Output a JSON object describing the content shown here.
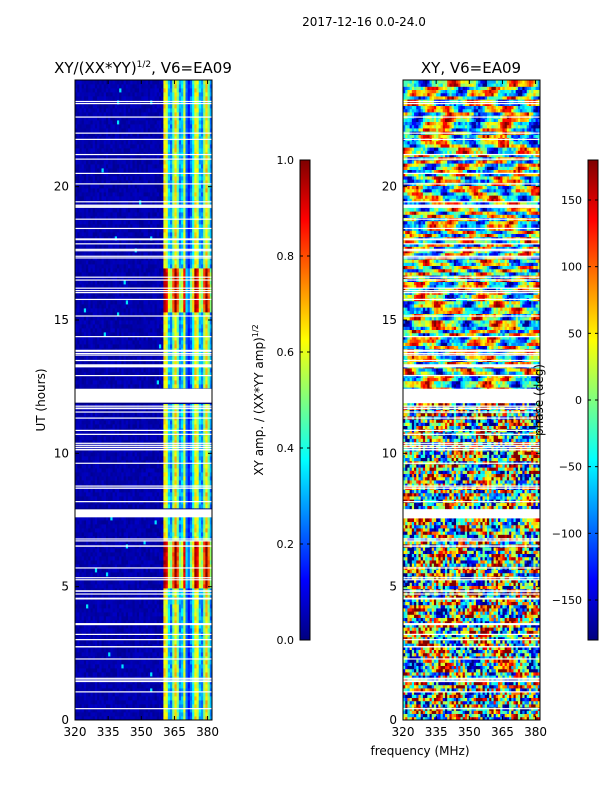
{
  "figure": {
    "suptitle": "2017-12-16 0.0-24.0",
    "shared_xlabel": "frequency (MHz)"
  },
  "colors": {
    "jet": [
      "#00007f",
      "#0000ff",
      "#007fff",
      "#00ffff",
      "#7fff7f",
      "#ffff00",
      "#ff7f00",
      "#ff0000",
      "#7f0000"
    ],
    "gap": "#ffffff",
    "axes": "#000000"
  },
  "chart_data": [
    {
      "type": "heatmap",
      "title_main": "XY/(XX*YY)",
      "title_sup": "1/2",
      "title_rest": ", V6=EA09",
      "xlabel": "",
      "ylabel": "UT (hours)",
      "xlim": [
        320,
        382
      ],
      "ylim": [
        0,
        24
      ],
      "xticks": [
        320,
        335,
        350,
        365,
        380
      ],
      "yticks": [
        0,
        5,
        10,
        15,
        20
      ],
      "signal_band_mhz": [
        360,
        381
      ],
      "high_amp_hours": [
        [
          5.0,
          6.8
        ],
        [
          15.3,
          17.0
        ]
      ],
      "data_gaps_hours": [
        [
          7.6,
          7.9
        ],
        [
          11.9,
          12.4
        ]
      ],
      "colorbar": {
        "label_main": "XY amp. / (XX*YY amp)",
        "label_sup": "1/2",
        "range": [
          0.0,
          1.0
        ],
        "ticks": [
          "0.0",
          "0.2",
          "0.4",
          "0.6",
          "0.8",
          "1.0"
        ],
        "tick_values": [
          0.0,
          0.2,
          0.4,
          0.6,
          0.8,
          1.0
        ]
      }
    },
    {
      "type": "heatmap",
      "title": "XY, V6=EA09",
      "xlabel": "",
      "ylabel": "",
      "xlim": [
        320,
        382
      ],
      "ylim": [
        0,
        24
      ],
      "xticks": [
        320,
        335,
        350,
        365,
        380
      ],
      "yticks": [
        0,
        5,
        10,
        15,
        20
      ],
      "data_gaps_hours": [
        [
          7.6,
          7.9
        ],
        [
          11.9,
          12.4
        ]
      ],
      "colorbar": {
        "label": "phase (deg)",
        "range": [
          -180,
          180
        ],
        "ticks": [
          "150",
          "100",
          "50",
          "0",
          "−50",
          "−100",
          "−150"
        ],
        "tick_values": [
          150,
          100,
          50,
          0,
          -50,
          -100,
          -150
        ]
      }
    }
  ]
}
